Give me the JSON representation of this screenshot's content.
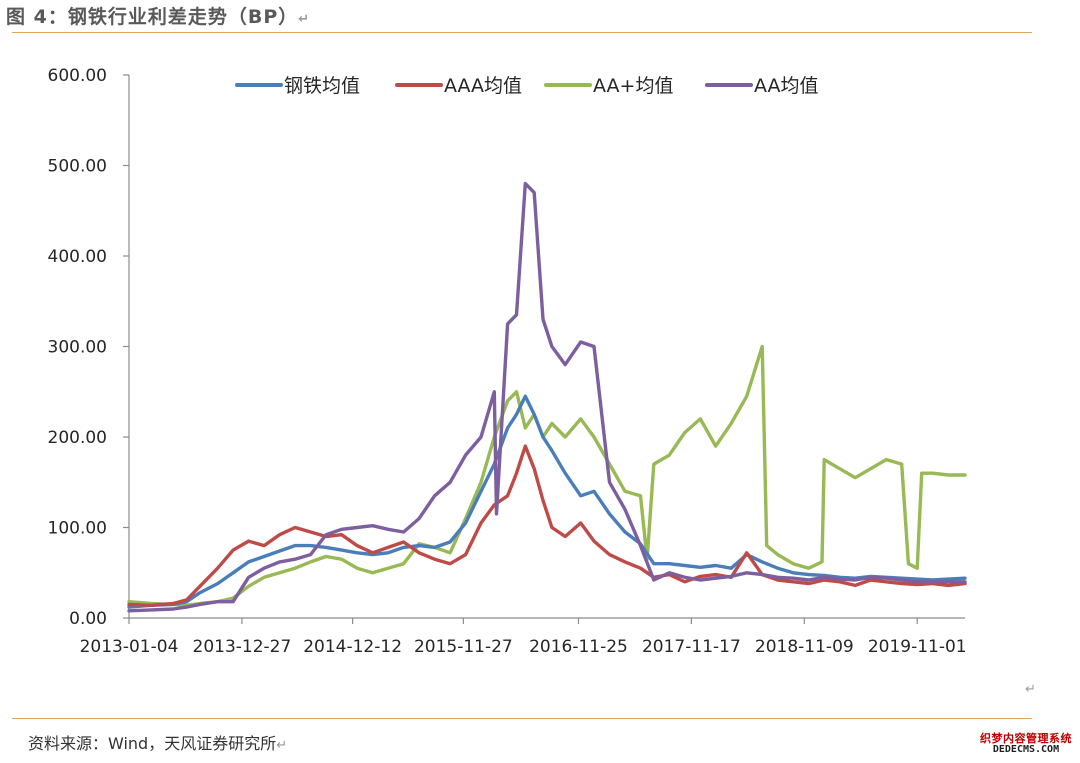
{
  "figure_title": "图 4：钢铁行业利差走势（BP）",
  "return_mark": "↵",
  "source_note": "资料来源：Wind，天风证券研究所",
  "stray_mark": "↵",
  "watermark": {
    "line1": "织梦内容管理系统",
    "line2": "DEDECMS.COM"
  },
  "chart_data": {
    "type": "line",
    "title": "",
    "xlabel": "",
    "ylabel": "",
    "ylim": [
      0,
      600
    ],
    "y_ticks": [
      "600.00",
      "500.00",
      "400.00",
      "300.00",
      "200.00",
      "100.00",
      "0.00"
    ],
    "x_ticks": [
      "2013-01-04",
      "2013-12-27",
      "2014-12-12",
      "2015-11-27",
      "2016-11-25",
      "2017-11-17",
      "2018-11-09",
      "2019-11-01"
    ],
    "x_range": [
      "2013-01-04",
      "2020-03-31"
    ],
    "grid": false,
    "legend_position": "top",
    "series": [
      {
        "name": "钢铁均值",
        "color": "#4a7ebb",
        "points": [
          [
            "2013-01-04",
            12
          ],
          [
            "2013-03-15",
            14
          ],
          [
            "2013-05-24",
            15
          ],
          [
            "2013-07-05",
            18
          ],
          [
            "2013-08-16",
            28
          ],
          [
            "2013-10-11",
            38
          ],
          [
            "2013-11-29",
            50
          ],
          [
            "2014-01-17",
            62
          ],
          [
            "2014-03-07",
            68
          ],
          [
            "2014-04-25",
            74
          ],
          [
            "2014-06-13",
            80
          ],
          [
            "2014-08-01",
            80
          ],
          [
            "2014-09-19",
            78
          ],
          [
            "2014-11-07",
            75
          ],
          [
            "2014-12-26",
            72
          ],
          [
            "2015-02-13",
            70
          ],
          [
            "2015-04-03",
            72
          ],
          [
            "2015-05-22",
            78
          ],
          [
            "2015-07-10",
            80
          ],
          [
            "2015-08-28",
            78
          ],
          [
            "2015-10-16",
            84
          ],
          [
            "2015-12-04",
            105
          ],
          [
            "2016-01-22",
            140
          ],
          [
            "2016-03-04",
            170
          ],
          [
            "2016-04-15",
            210
          ],
          [
            "2016-05-13",
            225
          ],
          [
            "2016-06-10",
            245
          ],
          [
            "2016-07-08",
            225
          ],
          [
            "2016-08-05",
            200
          ],
          [
            "2016-09-02",
            185
          ],
          [
            "2016-10-14",
            160
          ],
          [
            "2016-12-02",
            135
          ],
          [
            "2017-01-13",
            140
          ],
          [
            "2017-03-03",
            115
          ],
          [
            "2017-04-21",
            95
          ],
          [
            "2017-06-09",
            82
          ],
          [
            "2017-07-21",
            60
          ],
          [
            "2017-09-08",
            60
          ],
          [
            "2017-10-27",
            58
          ],
          [
            "2017-12-15",
            56
          ],
          [
            "2018-02-02",
            58
          ],
          [
            "2018-03-23",
            55
          ],
          [
            "2018-05-11",
            70
          ],
          [
            "2018-06-29",
            62
          ],
          [
            "2018-08-17",
            55
          ],
          [
            "2018-10-05",
            50
          ],
          [
            "2018-11-23",
            48
          ],
          [
            "2019-01-11",
            47
          ],
          [
            "2019-03-01",
            45
          ],
          [
            "2019-04-19",
            44
          ],
          [
            "2019-06-07",
            46
          ],
          [
            "2019-07-26",
            45
          ],
          [
            "2019-09-13",
            44
          ],
          [
            "2019-11-01",
            43
          ],
          [
            "2019-12-20",
            42
          ],
          [
            "2020-02-07",
            43
          ],
          [
            "2020-03-31",
            44
          ]
        ]
      },
      {
        "name": "AAA均值",
        "color": "#be4b48",
        "points": [
          [
            "2013-01-04",
            15
          ],
          [
            "2013-03-15",
            14
          ],
          [
            "2013-05-24",
            16
          ],
          [
            "2013-07-05",
            20
          ],
          [
            "2013-08-16",
            35
          ],
          [
            "2013-10-11",
            55
          ],
          [
            "2013-11-29",
            75
          ],
          [
            "2014-01-17",
            85
          ],
          [
            "2014-03-07",
            80
          ],
          [
            "2014-04-25",
            92
          ],
          [
            "2014-06-13",
            100
          ],
          [
            "2014-08-01",
            95
          ],
          [
            "2014-09-19",
            90
          ],
          [
            "2014-11-07",
            92
          ],
          [
            "2014-12-26",
            80
          ],
          [
            "2015-02-13",
            72
          ],
          [
            "2015-04-03",
            78
          ],
          [
            "2015-05-22",
            84
          ],
          [
            "2015-07-10",
            72
          ],
          [
            "2015-08-28",
            65
          ],
          [
            "2015-10-16",
            60
          ],
          [
            "2015-12-04",
            70
          ],
          [
            "2016-01-22",
            105
          ],
          [
            "2016-03-04",
            125
          ],
          [
            "2016-04-15",
            135
          ],
          [
            "2016-05-13",
            160
          ],
          [
            "2016-06-10",
            190
          ],
          [
            "2016-07-08",
            165
          ],
          [
            "2016-08-05",
            130
          ],
          [
            "2016-09-02",
            100
          ],
          [
            "2016-10-14",
            90
          ],
          [
            "2016-12-02",
            105
          ],
          [
            "2017-01-13",
            85
          ],
          [
            "2017-03-03",
            70
          ],
          [
            "2017-04-21",
            62
          ],
          [
            "2017-06-09",
            55
          ],
          [
            "2017-07-21",
            45
          ],
          [
            "2017-09-08",
            48
          ],
          [
            "2017-10-27",
            40
          ],
          [
            "2017-12-15",
            46
          ],
          [
            "2018-02-02",
            48
          ],
          [
            "2018-03-23",
            45
          ],
          [
            "2018-05-11",
            72
          ],
          [
            "2018-06-29",
            48
          ],
          [
            "2018-08-17",
            42
          ],
          [
            "2018-10-05",
            40
          ],
          [
            "2018-11-23",
            38
          ],
          [
            "2019-01-11",
            42
          ],
          [
            "2019-03-01",
            40
          ],
          [
            "2019-04-19",
            36
          ],
          [
            "2019-06-07",
            42
          ],
          [
            "2019-07-26",
            40
          ],
          [
            "2019-09-13",
            38
          ],
          [
            "2019-11-01",
            37
          ],
          [
            "2019-12-20",
            38
          ],
          [
            "2020-02-07",
            36
          ],
          [
            "2020-03-31",
            38
          ]
        ]
      },
      {
        "name": "AA+均值",
        "color": "#98b954",
        "points": [
          [
            "2013-01-04",
            18
          ],
          [
            "2013-03-15",
            16
          ],
          [
            "2013-05-24",
            15
          ],
          [
            "2013-07-05",
            14
          ],
          [
            "2013-08-16",
            16
          ],
          [
            "2013-10-11",
            18
          ],
          [
            "2013-11-29",
            22
          ],
          [
            "2014-01-17",
            35
          ],
          [
            "2014-03-07",
            45
          ],
          [
            "2014-04-25",
            50
          ],
          [
            "2014-06-13",
            55
          ],
          [
            "2014-08-01",
            62
          ],
          [
            "2014-09-19",
            68
          ],
          [
            "2014-11-07",
            65
          ],
          [
            "2014-12-26",
            55
          ],
          [
            "2015-02-13",
            50
          ],
          [
            "2015-04-03",
            55
          ],
          [
            "2015-05-22",
            60
          ],
          [
            "2015-07-10",
            82
          ],
          [
            "2015-08-28",
            78
          ],
          [
            "2015-10-16",
            72
          ],
          [
            "2015-12-04",
            110
          ],
          [
            "2016-01-22",
            150
          ],
          [
            "2016-03-04",
            200
          ],
          [
            "2016-04-15",
            240
          ],
          [
            "2016-05-13",
            250
          ],
          [
            "2016-06-10",
            210
          ],
          [
            "2016-07-08",
            225
          ],
          [
            "2016-08-05",
            200
          ],
          [
            "2016-09-02",
            215
          ],
          [
            "2016-10-14",
            200
          ],
          [
            "2016-12-02",
            220
          ],
          [
            "2017-01-13",
            200
          ],
          [
            "2017-03-03",
            170
          ],
          [
            "2017-04-21",
            140
          ],
          [
            "2017-06-09",
            135
          ],
          [
            "2017-06-30",
            65
          ],
          [
            "2017-07-21",
            170
          ],
          [
            "2017-09-08",
            180
          ],
          [
            "2017-10-27",
            205
          ],
          [
            "2017-12-15",
            220
          ],
          [
            "2018-02-02",
            190
          ],
          [
            "2018-03-23",
            215
          ],
          [
            "2018-05-11",
            245
          ],
          [
            "2018-06-29",
            300
          ],
          [
            "2018-07-13",
            80
          ],
          [
            "2018-08-17",
            70
          ],
          [
            "2018-10-05",
            60
          ],
          [
            "2018-11-23",
            55
          ],
          [
            "2019-01-04",
            62
          ],
          [
            "2019-01-11",
            175
          ],
          [
            "2019-03-01",
            165
          ],
          [
            "2019-04-19",
            155
          ],
          [
            "2019-06-07",
            165
          ],
          [
            "2019-07-26",
            175
          ],
          [
            "2019-09-13",
            170
          ],
          [
            "2019-10-04",
            60
          ],
          [
            "2019-11-01",
            55
          ],
          [
            "2019-11-15",
            160
          ],
          [
            "2019-12-20",
            160
          ],
          [
            "2020-02-07",
            158
          ],
          [
            "2020-03-31",
            158
          ]
        ]
      },
      {
        "name": "AA均值",
        "color": "#7d5fa0",
        "points": [
          [
            "2013-01-04",
            8
          ],
          [
            "2013-03-15",
            9
          ],
          [
            "2013-05-24",
            10
          ],
          [
            "2013-07-05",
            12
          ],
          [
            "2013-08-16",
            15
          ],
          [
            "2013-10-11",
            18
          ],
          [
            "2013-11-29",
            18
          ],
          [
            "2014-01-17",
            45
          ],
          [
            "2014-03-07",
            55
          ],
          [
            "2014-04-25",
            62
          ],
          [
            "2014-06-13",
            65
          ],
          [
            "2014-08-01",
            70
          ],
          [
            "2014-09-19",
            92
          ],
          [
            "2014-11-07",
            98
          ],
          [
            "2014-12-26",
            100
          ],
          [
            "2015-02-13",
            102
          ],
          [
            "2015-04-03",
            98
          ],
          [
            "2015-05-22",
            95
          ],
          [
            "2015-07-10",
            110
          ],
          [
            "2015-08-28",
            135
          ],
          [
            "2015-10-16",
            150
          ],
          [
            "2015-12-04",
            180
          ],
          [
            "2016-01-22",
            200
          ],
          [
            "2016-03-04",
            250
          ],
          [
            "2016-03-11",
            115
          ],
          [
            "2016-04-15",
            325
          ],
          [
            "2016-05-13",
            335
          ],
          [
            "2016-06-10",
            480
          ],
          [
            "2016-07-08",
            470
          ],
          [
            "2016-08-05",
            330
          ],
          [
            "2016-09-02",
            300
          ],
          [
            "2016-10-14",
            280
          ],
          [
            "2016-12-02",
            305
          ],
          [
            "2017-01-13",
            300
          ],
          [
            "2017-03-03",
            150
          ],
          [
            "2017-04-21",
            120
          ],
          [
            "2017-06-09",
            80
          ],
          [
            "2017-07-21",
            42
          ],
          [
            "2017-09-08",
            50
          ],
          [
            "2017-10-27",
            45
          ],
          [
            "2017-12-15",
            42
          ],
          [
            "2018-02-02",
            44
          ],
          [
            "2018-03-23",
            46
          ],
          [
            "2018-05-11",
            50
          ],
          [
            "2018-06-29",
            48
          ],
          [
            "2018-08-17",
            45
          ],
          [
            "2018-10-05",
            44
          ],
          [
            "2018-11-23",
            42
          ],
          [
            "2019-01-11",
            45
          ],
          [
            "2019-03-01",
            43
          ],
          [
            "2019-04-19",
            42
          ],
          [
            "2019-06-07",
            45
          ],
          [
            "2019-07-26",
            44
          ],
          [
            "2019-09-13",
            42
          ],
          [
            "2019-11-01",
            40
          ],
          [
            "2019-12-20",
            40
          ],
          [
            "2020-02-07",
            40
          ],
          [
            "2020-03-31",
            40
          ]
        ]
      }
    ]
  }
}
